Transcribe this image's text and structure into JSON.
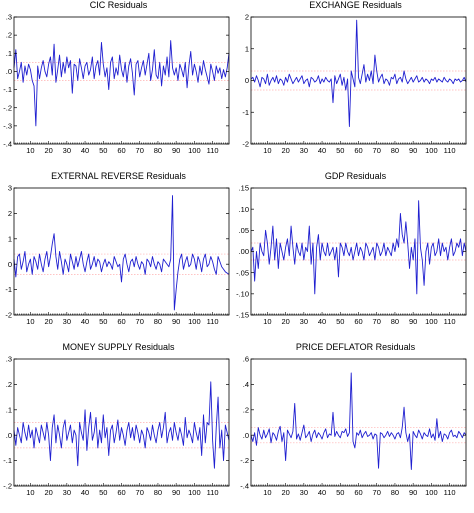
{
  "colors": {
    "series": "#1f1fd0",
    "zero_line": "#ffb0b0",
    "frame": "#000000",
    "background": "#ffffff"
  },
  "chart_data": [
    {
      "type": "line",
      "title": "CIC Residuals",
      "xlabel": "",
      "ylabel": "",
      "x_start": 1,
      "xlim": [
        1,
        119
      ],
      "xticks": [
        10,
        20,
        30,
        40,
        50,
        60,
        70,
        80,
        90,
        100,
        110
      ],
      "ylim": [
        -0.4,
        0.3
      ],
      "yticks": [
        -0.4,
        -0.3,
        -0.2,
        -0.1,
        0.0,
        0.1,
        0.2,
        0.3
      ],
      "ytick_labels": [
        "-.4",
        "-.3",
        "-.2",
        "-.1",
        ".0",
        ".1",
        ".2",
        ".3"
      ],
      "reference_lines": [
        0.05,
        -0.05
      ],
      "series": [
        {
          "values": [
            0.02,
            0.12,
            -0.04,
            0.0,
            0.05,
            -0.06,
            0.03,
            -0.02,
            0.04,
            0.01,
            -0.05,
            -0.08,
            -0.3,
            0.03,
            -0.04,
            0.02,
            0.06,
            0.0,
            -0.03,
            0.04,
            0.08,
            -0.02,
            0.15,
            -0.06,
            0.01,
            0.09,
            -0.03,
            0.05,
            -0.01,
            0.08,
            0.02,
            0.06,
            -0.12,
            0.04,
            0.03,
            -0.05,
            0.07,
            0.02,
            -0.04,
            0.03,
            0.05,
            -0.02,
            0.01,
            0.08,
            -0.04,
            0.03,
            0.06,
            -0.02,
            0.16,
            0.04,
            -0.03,
            0.02,
            -0.1,
            0.05,
            0.08,
            -0.04,
            0.02,
            -0.02,
            0.09,
            0.01,
            -0.03,
            0.05,
            -0.06,
            0.03,
            0.07,
            -0.01,
            -0.13,
            0.04,
            0.06,
            -0.03,
            0.02,
            0.06,
            -0.02,
            0.04,
            0.1,
            -0.05,
            0.01,
            0.12,
            -0.02,
            -0.04,
            0.05,
            -0.08,
            0.03,
            -0.02,
            0.08,
            -0.03,
            0.17,
            0.02,
            -0.02,
            0.02,
            -0.05,
            0.04,
            0.01,
            -0.03,
            0.05,
            -0.09,
            0.03,
            0.11,
            -0.02,
            0.04,
            0.0,
            -0.06,
            0.03,
            -0.02,
            0.06,
            0.01,
            -0.03,
            -0.07,
            0.04,
            0.0,
            -0.05,
            0.03,
            -0.01,
            0.02,
            -0.04,
            0.01,
            -0.03,
            0.02,
            0.1
          ]
        }
      ]
    },
    {
      "type": "line",
      "title": "EXCHANGE Residuals",
      "xlabel": "",
      "ylabel": "",
      "x_start": 1,
      "xlim": [
        1,
        119
      ],
      "xticks": [
        10,
        20,
        30,
        40,
        50,
        60,
        70,
        80,
        90,
        100,
        110
      ],
      "ylim": [
        -2,
        2
      ],
      "yticks": [
        -2,
        -1,
        0,
        1,
        2
      ],
      "ytick_labels": [
        "-2",
        "-1",
        "0",
        "1",
        "2"
      ],
      "reference_lines": [
        0.3,
        -0.3
      ],
      "series": [
        {
          "values": [
            0.05,
            0.1,
            -0.05,
            0.15,
            0.0,
            -0.2,
            0.1,
            0.05,
            -0.1,
            0.2,
            -0.15,
            0.0,
            0.1,
            -0.05,
            0.15,
            -0.1,
            0.05,
            0.0,
            -0.15,
            0.1,
            -0.05,
            0.2,
            0.05,
            -0.1,
            0.0,
            0.1,
            -0.05,
            0.05,
            0.15,
            -0.1,
            0.0,
            0.05,
            -0.2,
            0.1,
            0.05,
            -0.05,
            0.0,
            0.15,
            -0.1,
            0.05,
            -0.05,
            0.1,
            0.0,
            -0.05,
            0.05,
            -0.7,
            0.15,
            -0.1,
            0.05,
            0.2,
            -0.15,
            0.1,
            -0.3,
            0.05,
            -1.45,
            0.3,
            0.05,
            -0.2,
            1.9,
            0.1,
            -0.1,
            0.2,
            0.5,
            -0.05,
            0.2,
            0.0,
            0.3,
            -0.1,
            0.8,
            0.3,
            -0.05,
            0.1,
            0.2,
            -0.1,
            0.05,
            0.0,
            -0.15,
            0.1,
            0.05,
            0.2,
            -0.1,
            0.05,
            0.1,
            -0.05,
            0.3,
            0.05,
            -0.1,
            0.0,
            0.1,
            -0.05,
            0.05,
            0.15,
            -0.05,
            0.0,
            0.1,
            -0.05,
            0.05,
            0.0,
            -0.1,
            0.05,
            0.0,
            0.1,
            -0.05,
            0.05,
            0.0,
            -0.05,
            0.1,
            0.0,
            -0.05,
            0.05,
            0.0,
            -0.1,
            0.05,
            0.0,
            0.05,
            -0.05,
            0.0,
            0.1,
            -0.05
          ]
        }
      ]
    },
    {
      "type": "line",
      "title": "EXTERNAL REVERSE Residuals",
      "xlabel": "",
      "ylabel": "",
      "x_start": 1,
      "xlim": [
        1,
        119
      ],
      "xticks": [
        10,
        20,
        30,
        40,
        50,
        60,
        70,
        80,
        90,
        100,
        110
      ],
      "ylim": [
        -2,
        3
      ],
      "yticks": [
        -2,
        -1,
        0,
        1,
        2,
        3
      ],
      "ytick_labels": [
        "-2",
        "-1",
        "0",
        "1",
        "2",
        "3"
      ],
      "reference_lines": [
        0.4,
        -0.4
      ],
      "series": [
        {
          "values": [
            0.2,
            -0.5,
            0.3,
            0.4,
            -0.2,
            0.1,
            0.5,
            -0.3,
            0.0,
            0.2,
            -0.4,
            0.3,
            0.1,
            -0.2,
            0.4,
            0.0,
            -0.3,
            0.2,
            0.5,
            -0.1,
            0.3,
            0.8,
            1.2,
            0.3,
            -0.2,
            0.5,
            0.1,
            -0.4,
            0.2,
            0.0,
            -0.3,
            0.4,
            0.1,
            -0.2,
            0.3,
            -0.1,
            0.2,
            0.5,
            0.0,
            -0.3,
            0.1,
            0.4,
            -0.2,
            0.0,
            0.3,
            -0.1,
            0.2,
            0.1,
            -0.3,
            0.0,
            0.2,
            -0.1,
            0.1,
            0.0,
            -0.2,
            0.3,
            0.1,
            -0.1,
            0.0,
            -0.7,
            0.2,
            0.4,
            0.0,
            -0.3,
            0.1,
            0.2,
            -0.1,
            0.3,
            0.0,
            -0.2,
            0.1,
            0.0,
            -0.4,
            0.2,
            0.1,
            -0.1,
            0.3,
            0.0,
            -0.2,
            0.1,
            0.0,
            -0.3,
            0.2,
            0.1,
            0.0,
            -0.1,
            0.2,
            2.7,
            -1.8,
            -1.0,
            -0.3,
            0.2,
            0.4,
            -0.2,
            0.1,
            0.3,
            -0.1,
            0.0,
            0.4,
            0.2,
            -0.2,
            0.3,
            0.1,
            -0.3,
            0.2,
            0.4,
            -0.1,
            0.0,
            0.3,
            0.1,
            -0.2,
            -0.4,
            0.3,
            0.1,
            -0.1,
            -0.2,
            -0.3,
            -0.35,
            -0.4
          ]
        }
      ]
    },
    {
      "type": "line",
      "title": "GDP Residuals",
      "xlabel": "",
      "ylabel": "",
      "x_start": 1,
      "xlim": [
        1,
        119
      ],
      "xticks": [
        10,
        20,
        30,
        40,
        50,
        60,
        70,
        80,
        90,
        100,
        110
      ],
      "ylim": [
        -0.15,
        0.15
      ],
      "yticks": [
        -0.15,
        -0.1,
        -0.05,
        0.0,
        0.05,
        0.1,
        0.15
      ],
      "ytick_labels": [
        "-.15",
        "-.10",
        "-.05",
        ".00",
        ".05",
        ".10",
        ".15"
      ],
      "reference_lines": [
        0.02,
        -0.02
      ],
      "series": [
        {
          "values": [
            0.0,
            0.01,
            -0.07,
            0.0,
            -0.04,
            0.02,
            0.0,
            -0.01,
            0.05,
            0.02,
            -0.03,
            0.01,
            0.06,
            -0.02,
            0.03,
            -0.04,
            0.02,
            0.0,
            -0.02,
            0.01,
            0.03,
            -0.01,
            0.06,
            0.01,
            -0.03,
            0.02,
            0.0,
            -0.01,
            0.02,
            -0.02,
            0.01,
            0.0,
            0.06,
            -0.03,
            0.02,
            -0.1,
            0.01,
            0.04,
            -0.02,
            0.02,
            0.0,
            -0.01,
            0.02,
            -0.01,
            0.0,
            0.01,
            -0.02,
            0.01,
            -0.06,
            0.02,
            0.01,
            -0.01,
            0.02,
            0.0,
            -0.01,
            0.01,
            -0.02,
            0.0,
            0.02,
            -0.01,
            0.01,
            0.0,
            -0.02,
            0.02,
            0.01,
            -0.01,
            0.0,
            0.01,
            -0.02,
            0.02,
            0.01,
            -0.01,
            0.0,
            0.02,
            -0.01,
            0.01,
            0.0,
            -0.01,
            0.02,
            0.0,
            0.03,
            0.01,
            0.09,
            0.04,
            0.02,
            0.07,
            0.02,
            -0.04,
            0.01,
            -0.02,
            0.03,
            -0.1,
            0.12,
            0.01,
            -0.02,
            -0.08,
            0.0,
            0.02,
            -0.03,
            0.01,
            0.02,
            -0.01,
            0.0,
            0.03,
            -0.01,
            0.02,
            0.0,
            0.01,
            -0.02,
            0.01,
            0.03,
            -0.01,
            0.0,
            0.02,
            0.01,
            0.03,
            -0.01,
            0.02,
            0.0
          ]
        }
      ]
    },
    {
      "type": "line",
      "title": "MONEY SUPPLY Residuals",
      "xlabel": "",
      "ylabel": "",
      "x_start": 1,
      "xlim": [
        1,
        119
      ],
      "xticks": [
        10,
        20,
        30,
        40,
        50,
        60,
        70,
        80,
        90,
        100,
        110
      ],
      "ylim": [
        -0.2,
        0.3
      ],
      "yticks": [
        -0.2,
        -0.1,
        0.0,
        0.1,
        0.2,
        0.3
      ],
      "ytick_labels": [
        "-.2",
        "-.1",
        ".0",
        ".1",
        ".2",
        ".3"
      ],
      "reference_lines": [
        0.05,
        -0.05
      ],
      "series": [
        {
          "values": [
            0.02,
            -0.04,
            0.03,
            0.0,
            -0.03,
            0.05,
            0.01,
            -0.02,
            0.04,
            -0.01,
            0.02,
            -0.05,
            0.03,
            0.0,
            -0.03,
            0.04,
            0.01,
            -0.02,
            0.05,
            0.0,
            -0.1,
            0.03,
            0.08,
            -0.03,
            0.04,
            0.0,
            -0.05,
            0.03,
            0.06,
            -0.02,
            0.01,
            0.04,
            -0.03,
            0.02,
            0.0,
            -0.12,
            0.05,
            0.01,
            -0.02,
            0.1,
            -0.06,
            0.03,
            0.09,
            -0.02,
            0.01,
            0.07,
            -0.05,
            0.02,
            -0.03,
            0.08,
            -0.01,
            0.03,
            -0.08,
            0.02,
            0.04,
            -0.03,
            0.01,
            0.06,
            -0.02,
            0.03,
            0.0,
            -0.04,
            0.02,
            0.05,
            -0.01,
            0.03,
            -0.02,
            0.04,
            0.01,
            -0.03,
            0.02,
            0.0,
            -0.05,
            0.03,
            0.01,
            -0.02,
            0.04,
            0.0,
            -0.03,
            0.02,
            0.05,
            -0.01,
            0.03,
            0.09,
            -0.03,
            0.01,
            0.03,
            -0.02,
            0.05,
            0.01,
            -0.02,
            0.03,
            0.0,
            -0.04,
            0.07,
            -0.01,
            0.02,
            0.0,
            -0.03,
            0.05,
            0.01,
            -0.02,
            0.03,
            -0.08,
            0.08,
            -0.03,
            0.05,
            0.04,
            0.21,
            -0.02,
            -0.13,
            0.03,
            0.15,
            -0.05,
            0.02,
            -0.1,
            0.04,
            0.01,
            -0.02
          ]
        }
      ]
    },
    {
      "type": "line",
      "title": "PRICE DEFLATOR Residuals",
      "xlabel": "",
      "ylabel": "",
      "x_start": 1,
      "xlim": [
        1,
        119
      ],
      "xticks": [
        10,
        20,
        30,
        40,
        50,
        60,
        70,
        80,
        90,
        100,
        110
      ],
      "ylim": [
        -0.4,
        0.6
      ],
      "yticks": [
        -0.4,
        -0.2,
        0.0,
        0.2,
        0.4,
        0.6
      ],
      "ytick_labels": [
        "-.4",
        "-.2",
        ".0",
        ".2",
        ".4",
        ".6"
      ],
      "reference_lines": [
        0.06,
        -0.06
      ],
      "series": [
        {
          "values": [
            0.0,
            -0.05,
            0.02,
            -0.08,
            0.06,
            0.0,
            -0.03,
            0.04,
            -0.02,
            0.01,
            0.05,
            -0.06,
            0.02,
            0.0,
            -0.04,
            0.03,
            0.07,
            -0.05,
            0.02,
            -0.2,
            0.04,
            0.01,
            -0.02,
            0.03,
            0.25,
            -0.03,
            0.01,
            -0.04,
            0.02,
            0.08,
            -0.02,
            0.0,
            0.03,
            -0.05,
            0.01,
            0.04,
            -0.02,
            0.02,
            0.0,
            -0.03,
            0.02,
            0.05,
            -0.02,
            0.01,
            0.0,
            0.18,
            -0.01,
            0.03,
            0.0,
            -0.02,
            0.03,
            0.02,
            0.05,
            -0.01,
            0.02,
            0.49,
            -0.05,
            -0.1,
            0.02,
            0.0,
            0.04,
            -0.02,
            0.01,
            0.03,
            -0.01,
            0.0,
            0.02,
            -0.03,
            0.01,
            0.0,
            -0.26,
            0.02,
            0.01,
            -0.02,
            0.0,
            0.03,
            -0.01,
            0.02,
            0.0,
            -0.03,
            0.01,
            0.02,
            -0.02,
            0.06,
            0.22,
            0.02,
            -0.05,
            0.01,
            -0.27,
            0.03,
            0.0,
            -0.02,
            0.04,
            0.01,
            -0.03,
            0.02,
            0.0,
            -0.01,
            0.05,
            -0.02,
            0.01,
            -0.04,
            0.13,
            -0.02,
            0.03,
            -0.05,
            0.01,
            0.0,
            -0.03,
            0.02,
            0.04,
            -0.01,
            0.0,
            -0.02,
            0.03,
            0.01,
            -0.02,
            0.02,
            0.0
          ]
        }
      ]
    }
  ]
}
